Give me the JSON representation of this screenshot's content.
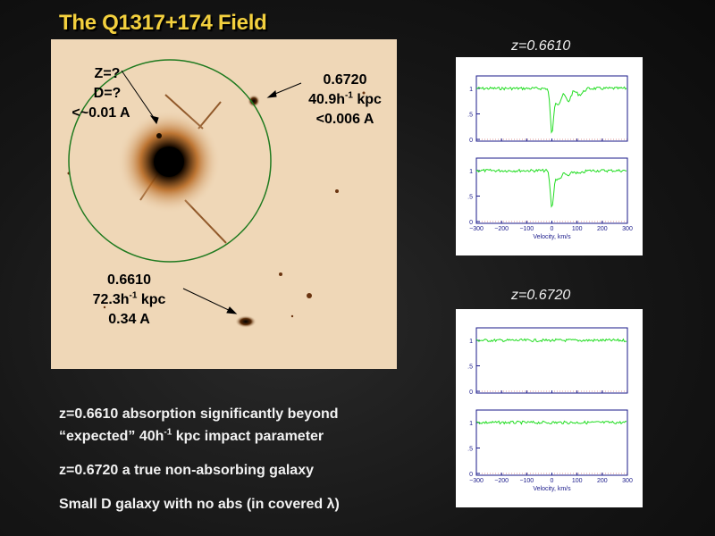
{
  "title": "The Q1317+174 Field",
  "field": {
    "labels": {
      "unknown": {
        "l1": "Z=?",
        "l2": "D=?",
        "l3": "<~0.01 A"
      },
      "g6720": {
        "l1": "0.6720",
        "l2a": "40.9h",
        "l2sup": "-1",
        "l2b": " kpc",
        "l3": "<0.006 A"
      },
      "g6610": {
        "l1": "0.6610",
        "l2a": "72.3h",
        "l2sup": "-1",
        "l2b": " kpc",
        "l3": "0.34 A"
      }
    }
  },
  "spectra": [
    {
      "z_label": "z=0.6610",
      "panels": [
        {
          "ytick_labels": [
            "1",
            ".5",
            "0"
          ],
          "absorption": true,
          "depth": 0.85
        },
        {
          "ytick_labels": [
            "1",
            ".5",
            "0"
          ],
          "absorption": true,
          "depth": 0.7
        }
      ],
      "xtick_labels": [
        "−300",
        "−200",
        "−100",
        "0",
        "100",
        "200",
        "300"
      ],
      "xlabel": "Velocity, km/s"
    },
    {
      "z_label": "z=0.6720",
      "panels": [
        {
          "ytick_labels": [
            "1",
            ".5",
            "0"
          ],
          "absorption": false,
          "depth": 0
        },
        {
          "ytick_labels": [
            "1",
            ".5",
            "0"
          ],
          "absorption": false,
          "depth": 0
        }
      ],
      "xtick_labels": [
        "−300",
        "−200",
        "−100",
        "0",
        "100",
        "200",
        "300"
      ],
      "xlabel": "Velocity, km/s"
    }
  ],
  "notes": {
    "n1": "z=0.6610 absorption significantly beyond",
    "n2a": "“expected” 40h",
    "n2sup": "-1",
    "n2b": " kpc impact parameter",
    "n3": "z=0.6720  a true non-absorbing galaxy",
    "n4": "Small D galaxy with no abs (in covered λ)"
  },
  "colors": {
    "title": "#f3d03e",
    "circle": "#1f7a1f",
    "spectrum": "#22dd22",
    "axes": "#1a1a8a"
  }
}
